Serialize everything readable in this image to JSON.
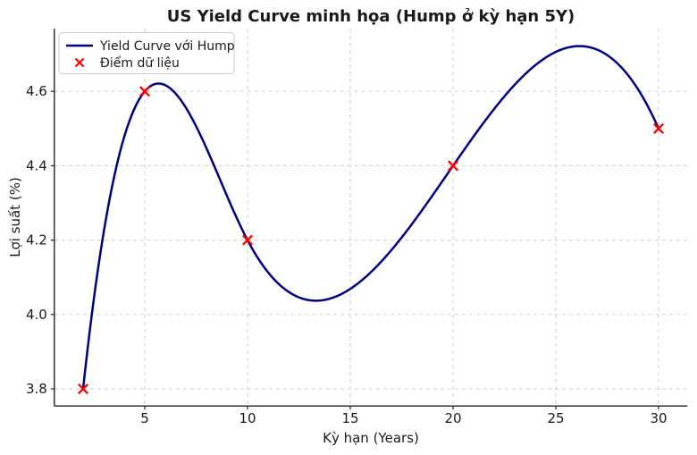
{
  "figure": {
    "background": "#ffffff",
    "text_color": "#1a1a1a",
    "grid_color": "#cdcdcd",
    "spine_color": "#222222"
  },
  "chart_data": {
    "type": "line",
    "title": "US Yield Curve minh họa (Hump ở kỳ hạn 5Y)",
    "xlabel": "Kỳ hạn (Years)",
    "ylabel": "Lợi suất (%)",
    "x": [
      2,
      5,
      10,
      20,
      30
    ],
    "y": [
      3.8,
      4.6,
      4.2,
      4.4,
      4.5
    ],
    "interpolation": "cubic-spline-not-a-knot",
    "curve_extrema_note": "hump peak ~(5.7, 4.62), trough ~(13.3, 4.04), second peak ~(26.1, 4.72)",
    "xticks": [
      "5",
      "10",
      "15",
      "20",
      "25",
      "30"
    ],
    "yticks": [
      "3.8",
      "4.0",
      "4.2",
      "4.4",
      "4.6"
    ],
    "xlim": [
      0.6,
      31.4
    ],
    "ylim": [
      3.754,
      4.769
    ],
    "grid": true,
    "line_color": "#000080",
    "marker_color": "#ff0000",
    "marker_style": "x",
    "legend": {
      "position": "upper-left",
      "entries": [
        {
          "label": "Yield Curve với Hump",
          "marker": "line",
          "color": "#000080"
        },
        {
          "label": "Điểm dữ liệu",
          "marker": "x",
          "color": "#ff0000"
        }
      ]
    }
  }
}
